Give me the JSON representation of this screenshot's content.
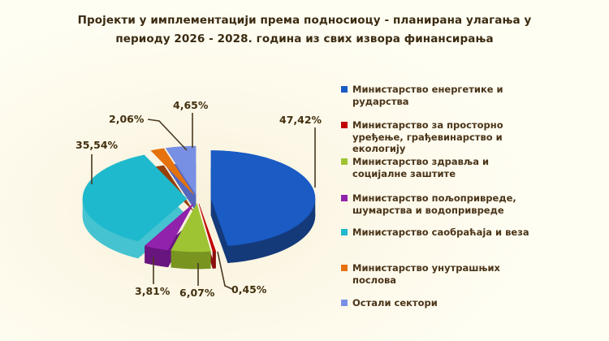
{
  "title": "Пројекти у имплементацији према подносиоцу - планирана улагања у периоду 2026 - 2028. година из свих извора финансирања",
  "chart_data": {
    "type": "pie",
    "style": "3d-exploded",
    "start_angle_deg": 0,
    "direction": "clockwise",
    "legend_position": "right",
    "background": "#FDF9EA",
    "categories": [
      "Министарство енергетике и рударства",
      "Министарство за просторно уређење, грађевинарство и екологију",
      "Министарство здравља и социјалне заштите",
      "Министарство пољопривреде, шумарства и водопривреде",
      "Министарство саобраћаја и веза",
      "Министарство унутрашњих послова",
      "Остали сектори"
    ],
    "values": [
      47.42,
      0.45,
      6.07,
      3.81,
      35.54,
      2.06,
      4.65
    ],
    "labels": [
      "47,42%",
      "0,45%",
      "6,07%",
      "3,81%",
      "35,54%",
      "2,06%",
      "4,65%"
    ],
    "colors": [
      {
        "top": "#1A5BC4",
        "side": "#143A7A"
      },
      {
        "top": "#C00000",
        "side": "#8A0E0E"
      },
      {
        "top": "#9EC433",
        "side": "#7A9420"
      },
      {
        "top": "#9122AC",
        "side": "#69157F"
      },
      {
        "top": "#1FB9CD",
        "side": "#45C3D1"
      },
      {
        "top": "#E5720D",
        "side": "#98400A"
      },
      {
        "top": "#7890E4",
        "side": "#5668BE"
      }
    ],
    "label_text_color": "#42300F",
    "leader_line_color": "#4A3820"
  }
}
